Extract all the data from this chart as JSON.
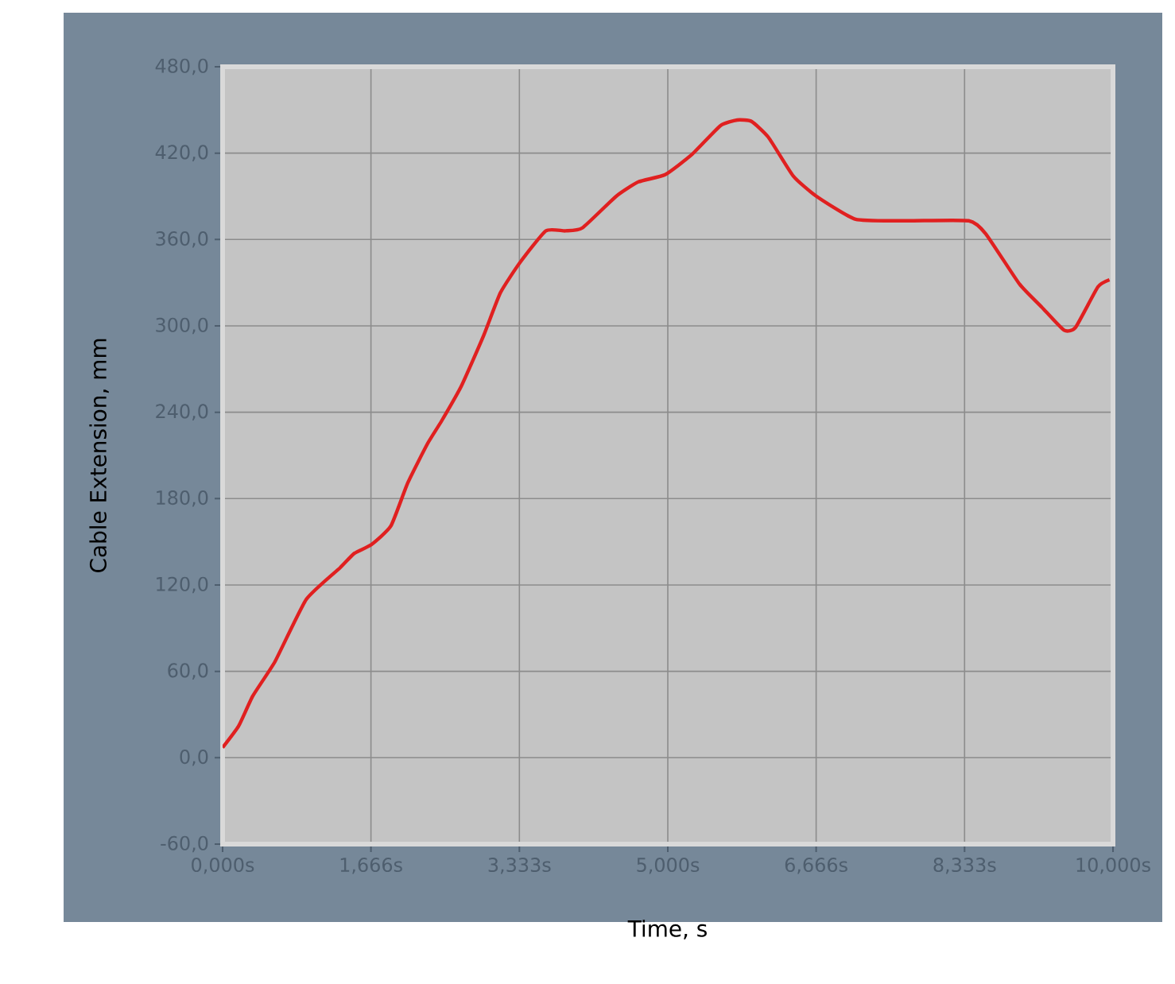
{
  "chart_data": {
    "type": "line",
    "xlabel": "Time, s",
    "ylabel": "Cable Extension, mm",
    "xlim": [
      0,
      10
    ],
    "ylim": [
      -60,
      480
    ],
    "xticks": [
      {
        "value": 0,
        "label": "0,000s"
      },
      {
        "value": 1.666,
        "label": "1,666s"
      },
      {
        "value": 3.333,
        "label": "3,333s"
      },
      {
        "value": 5,
        "label": "5,000s"
      },
      {
        "value": 6.666,
        "label": "6,666s"
      },
      {
        "value": 8.333,
        "label": "8,333s"
      },
      {
        "value": 10,
        "label": "10,000s"
      }
    ],
    "yticks": [
      {
        "value": -60,
        "label": "-60,0"
      },
      {
        "value": 0,
        "label": "0,0"
      },
      {
        "value": 60,
        "label": "60,0"
      },
      {
        "value": 120,
        "label": "120,0"
      },
      {
        "value": 180,
        "label": "180,0"
      },
      {
        "value": 240,
        "label": "240,0"
      },
      {
        "value": 300,
        "label": "300,0"
      },
      {
        "value": 360,
        "label": "360,0"
      },
      {
        "value": 420,
        "label": "420,0"
      },
      {
        "value": 480,
        "label": "480,0"
      }
    ],
    "grid": true,
    "series": [
      {
        "color": "#e02020",
        "x": [
          0,
          0.18,
          0.34,
          0.59,
          0.94,
          1.32,
          1.48,
          1.67,
          1.89,
          2.08,
          2.3,
          2.46,
          2.68,
          2.93,
          3.12,
          3.34,
          3.63,
          3.85,
          4.04,
          4.42,
          4.67,
          4.97,
          5.27,
          5.59,
          5.78,
          5.94,
          6.13,
          6.41,
          6.67,
          7.11,
          7.68,
          8.38,
          8.57,
          8.95,
          9.2,
          9.45,
          9.58,
          9.83,
          9.96
        ],
        "values": [
          7,
          22,
          43,
          67,
          110,
          132,
          142,
          148,
          161,
          191,
          218,
          234,
          258,
          293,
          323,
          344,
          366,
          366,
          368,
          390,
          400,
          405,
          419,
          439,
          443,
          442,
          431,
          404,
          390,
          374,
          373,
          373,
          364,
          329,
          313,
          297,
          299,
          327,
          332
        ]
      }
    ]
  }
}
